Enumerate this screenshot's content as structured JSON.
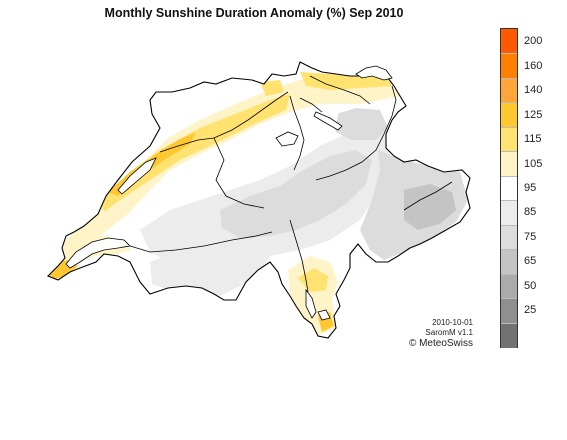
{
  "title": "Monthly Sunshine Duration Anomaly (%) Sep 2010",
  "legend": {
    "ticks": [
      "200",
      "160",
      "140",
      "125",
      "115",
      "105",
      "95",
      "85",
      "75",
      "65",
      "50",
      "25"
    ],
    "colors": [
      "#ff5a00",
      "#ff7f00",
      "#ffa53a",
      "#ffc830",
      "#ffe270",
      "#fff4c8",
      "#ffffff",
      "#ececec",
      "#dcdcdc",
      "#c4c4c4",
      "#ababab",
      "#8f8f8f",
      "#727272"
    ]
  },
  "credits": {
    "date": "2010-10-01",
    "version": "SaromM v1.1",
    "org": "© MeteoSwiss"
  }
}
